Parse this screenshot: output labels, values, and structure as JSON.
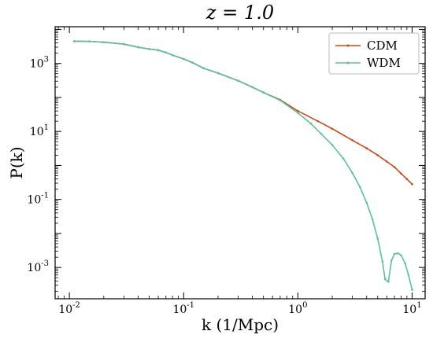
{
  "chart_data": {
    "type": "line",
    "title": "z = 1.0",
    "xlabel": "k (1/Mpc)",
    "ylabel": "P(k)",
    "x_scale": "log",
    "y_scale": "log",
    "xlim": [
      0.0075,
      13
    ],
    "ylim": [
      0.00012,
      12000
    ],
    "x_ticks": [
      {
        "value": 0.01,
        "base": "10",
        "exp": "-2"
      },
      {
        "value": 0.1,
        "base": "10",
        "exp": "-1"
      },
      {
        "value": 1,
        "base": "10",
        "exp": "0"
      },
      {
        "value": 10,
        "base": "10",
        "exp": "1"
      }
    ],
    "y_ticks": [
      {
        "value": 0.001,
        "base": "10",
        "exp": "-3"
      },
      {
        "value": 0.1,
        "base": "10",
        "exp": "-1"
      },
      {
        "value": 10,
        "base": "10",
        "exp": "1"
      },
      {
        "value": 1000,
        "base": "10",
        "exp": "3"
      }
    ],
    "grid": false,
    "legend_position": "top-right",
    "series": [
      {
        "name": "CDM",
        "color": "#c84b1a",
        "points": [
          [
            0.011,
            4500
          ],
          [
            0.015,
            4450
          ],
          [
            0.02,
            4200
          ],
          [
            0.03,
            3700
          ],
          [
            0.04,
            3000
          ],
          [
            0.05,
            2650
          ],
          [
            0.06,
            2450
          ],
          [
            0.07,
            2100
          ],
          [
            0.08,
            1750
          ],
          [
            0.1,
            1350
          ],
          [
            0.12,
            1050
          ],
          [
            0.15,
            720
          ],
          [
            0.2,
            520
          ],
          [
            0.3,
            310
          ],
          [
            0.4,
            200
          ],
          [
            0.5,
            140
          ],
          [
            0.7,
            85
          ],
          [
            1.0,
            40
          ],
          [
            1.5,
            20
          ],
          [
            2.0,
            12
          ],
          [
            3.0,
            5.5
          ],
          [
            4.0,
            3.2
          ],
          [
            5.0,
            2.0
          ],
          [
            6.0,
            1.3
          ],
          [
            7.0,
            0.9
          ],
          [
            8.0,
            0.58
          ],
          [
            9.0,
            0.4
          ],
          [
            10.0,
            0.28
          ]
        ]
      },
      {
        "name": "WDM",
        "color": "#5cc0a0",
        "points": [
          [
            0.011,
            4500
          ],
          [
            0.015,
            4450
          ],
          [
            0.02,
            4200
          ],
          [
            0.03,
            3700
          ],
          [
            0.04,
            3000
          ],
          [
            0.05,
            2650
          ],
          [
            0.06,
            2450
          ],
          [
            0.07,
            2100
          ],
          [
            0.08,
            1750
          ],
          [
            0.1,
            1350
          ],
          [
            0.12,
            1050
          ],
          [
            0.15,
            720
          ],
          [
            0.2,
            520
          ],
          [
            0.3,
            310
          ],
          [
            0.4,
            200
          ],
          [
            0.5,
            140
          ],
          [
            0.7,
            82
          ],
          [
            1.0,
            35
          ],
          [
            1.3,
            17
          ],
          [
            1.6,
            8.5
          ],
          [
            2.0,
            4.0
          ],
          [
            2.5,
            1.6
          ],
          [
            3.0,
            0.6
          ],
          [
            3.5,
            0.23
          ],
          [
            4.0,
            0.08
          ],
          [
            4.5,
            0.026
          ],
          [
            5.0,
            0.007
          ],
          [
            5.5,
            0.0015
          ],
          [
            5.8,
            0.00045
          ],
          [
            6.2,
            0.00038
          ],
          [
            6.6,
            0.0016
          ],
          [
            7.0,
            0.0025
          ],
          [
            7.5,
            0.0026
          ],
          [
            8.0,
            0.0023
          ],
          [
            8.7,
            0.0013
          ],
          [
            9.3,
            0.0006
          ],
          [
            10.0,
            0.00022
          ]
        ]
      }
    ]
  }
}
